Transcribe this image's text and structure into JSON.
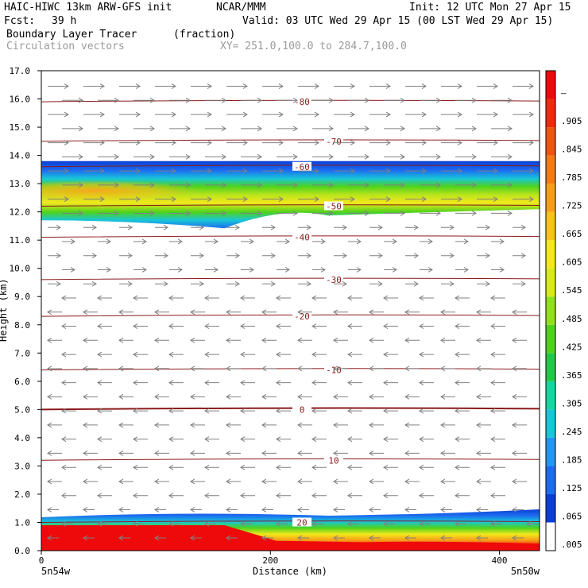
{
  "header": {
    "model": "HAIC-HIWC 13km ARW-GFS init",
    "org": "NCAR/MMM",
    "init": "Init: 12 UTC Mon 27 Apr 15",
    "fcst_label": "Fcst:",
    "fcst_value": "39 h",
    "valid": "Valid: 03 UTC Wed 29 Apr 15 (00 LST Wed 29 Apr 15)",
    "field": "Boundary Layer Tracer",
    "units": "(fraction)",
    "overlay": "Circulation vectors",
    "xy": "XY= 251.0,100.0 to 284.7,100.0"
  },
  "chart_data": {
    "type": "heatmap",
    "title": "Boundary Layer Tracer",
    "xlabel": "Distance (km)",
    "ylabel": "Height (km)",
    "xlim": [
      0,
      435
    ],
    "ylim": [
      0,
      17
    ],
    "x_ticks": [
      {
        "value": 0,
        "label": "0"
      },
      {
        "value": 200,
        "label": "200"
      },
      {
        "value": 400,
        "label": "400"
      }
    ],
    "y_ticks": [
      {
        "value": 0,
        "label": "0.0"
      },
      {
        "value": 1,
        "label": "1.0"
      },
      {
        "value": 2,
        "label": "2.0"
      },
      {
        "value": 3,
        "label": "3.0"
      },
      {
        "value": 4,
        "label": "4.0"
      },
      {
        "value": 5,
        "label": "5.0"
      },
      {
        "value": 6,
        "label": "6.0"
      },
      {
        "value": 7,
        "label": "7.0"
      },
      {
        "value": 8,
        "label": "8.0"
      },
      {
        "value": 9,
        "label": "9.0"
      },
      {
        "value": 10,
        "label": "10.0"
      },
      {
        "value": 11,
        "label": "11.0"
      },
      {
        "value": 12,
        "label": "12.0"
      },
      {
        "value": 13,
        "label": "13.0"
      },
      {
        "value": 14,
        "label": "14.0"
      },
      {
        "value": 15,
        "label": "15.0"
      },
      {
        "value": 16,
        "label": "16.0"
      },
      {
        "value": 17,
        "label": "17.0"
      }
    ],
    "endpoints": {
      "left": "5n54w",
      "right": "5n50w"
    },
    "colorbar": {
      "labels": [
        ".005",
        ".065",
        ".125",
        ".185",
        ".245",
        ".305",
        ".365",
        ".425",
        ".485",
        ".545",
        ".605",
        ".665",
        ".725",
        ".785",
        ".845",
        ".905",
        "–"
      ],
      "colors": [
        "#ffffff",
        "#0a3fd6",
        "#1d6cf0",
        "#2196f3",
        "#18c6d9",
        "#16d6a0",
        "#22c944",
        "#4fd21c",
        "#92e01c",
        "#d6ea1c",
        "#f2e81c",
        "#f6c21a",
        "#f79e18",
        "#f47a14",
        "#f25410",
        "#f02a0c",
        "#ee0a0a"
      ]
    },
    "tracer_layers": [
      {
        "name": "upper",
        "bottom_km": 11.7,
        "top_km": 13.8,
        "max_value": 0.74,
        "extent_km": [
          0,
          435
        ]
      },
      {
        "name": "lower",
        "bottom_km": 0.0,
        "top_km": 1.35,
        "max_value": 1.0,
        "extent_km": [
          0,
          435
        ]
      }
    ],
    "temperature_contours": [
      {
        "value": 20,
        "label": "20",
        "height_km": 1.0
      },
      {
        "value": 10,
        "label": "10",
        "height_km": 3.2
      },
      {
        "value": 0,
        "label": "0",
        "height_km": 5.0
      },
      {
        "value": -10,
        "label": "-10",
        "height_km": 6.4
      },
      {
        "value": -20,
        "label": "-20",
        "height_km": 8.3
      },
      {
        "value": -30,
        "label": "-30",
        "height_km": 9.6
      },
      {
        "value": -40,
        "label": "-40",
        "height_km": 11.1
      },
      {
        "value": -50,
        "label": "-50",
        "height_km": 12.2
      },
      {
        "value": -60,
        "label": "-60",
        "height_km": 13.6
      },
      {
        "value": -70,
        "label": "-70",
        "height_km": 14.5
      },
      {
        "value": -80,
        "label": "-80",
        "height_km": 15.9
      }
    ],
    "vectors": {
      "westerly_above_km": 9.0,
      "easterly_below_km": 8.5,
      "color": "#808080"
    },
    "contour_color": "#8b1a1a"
  }
}
